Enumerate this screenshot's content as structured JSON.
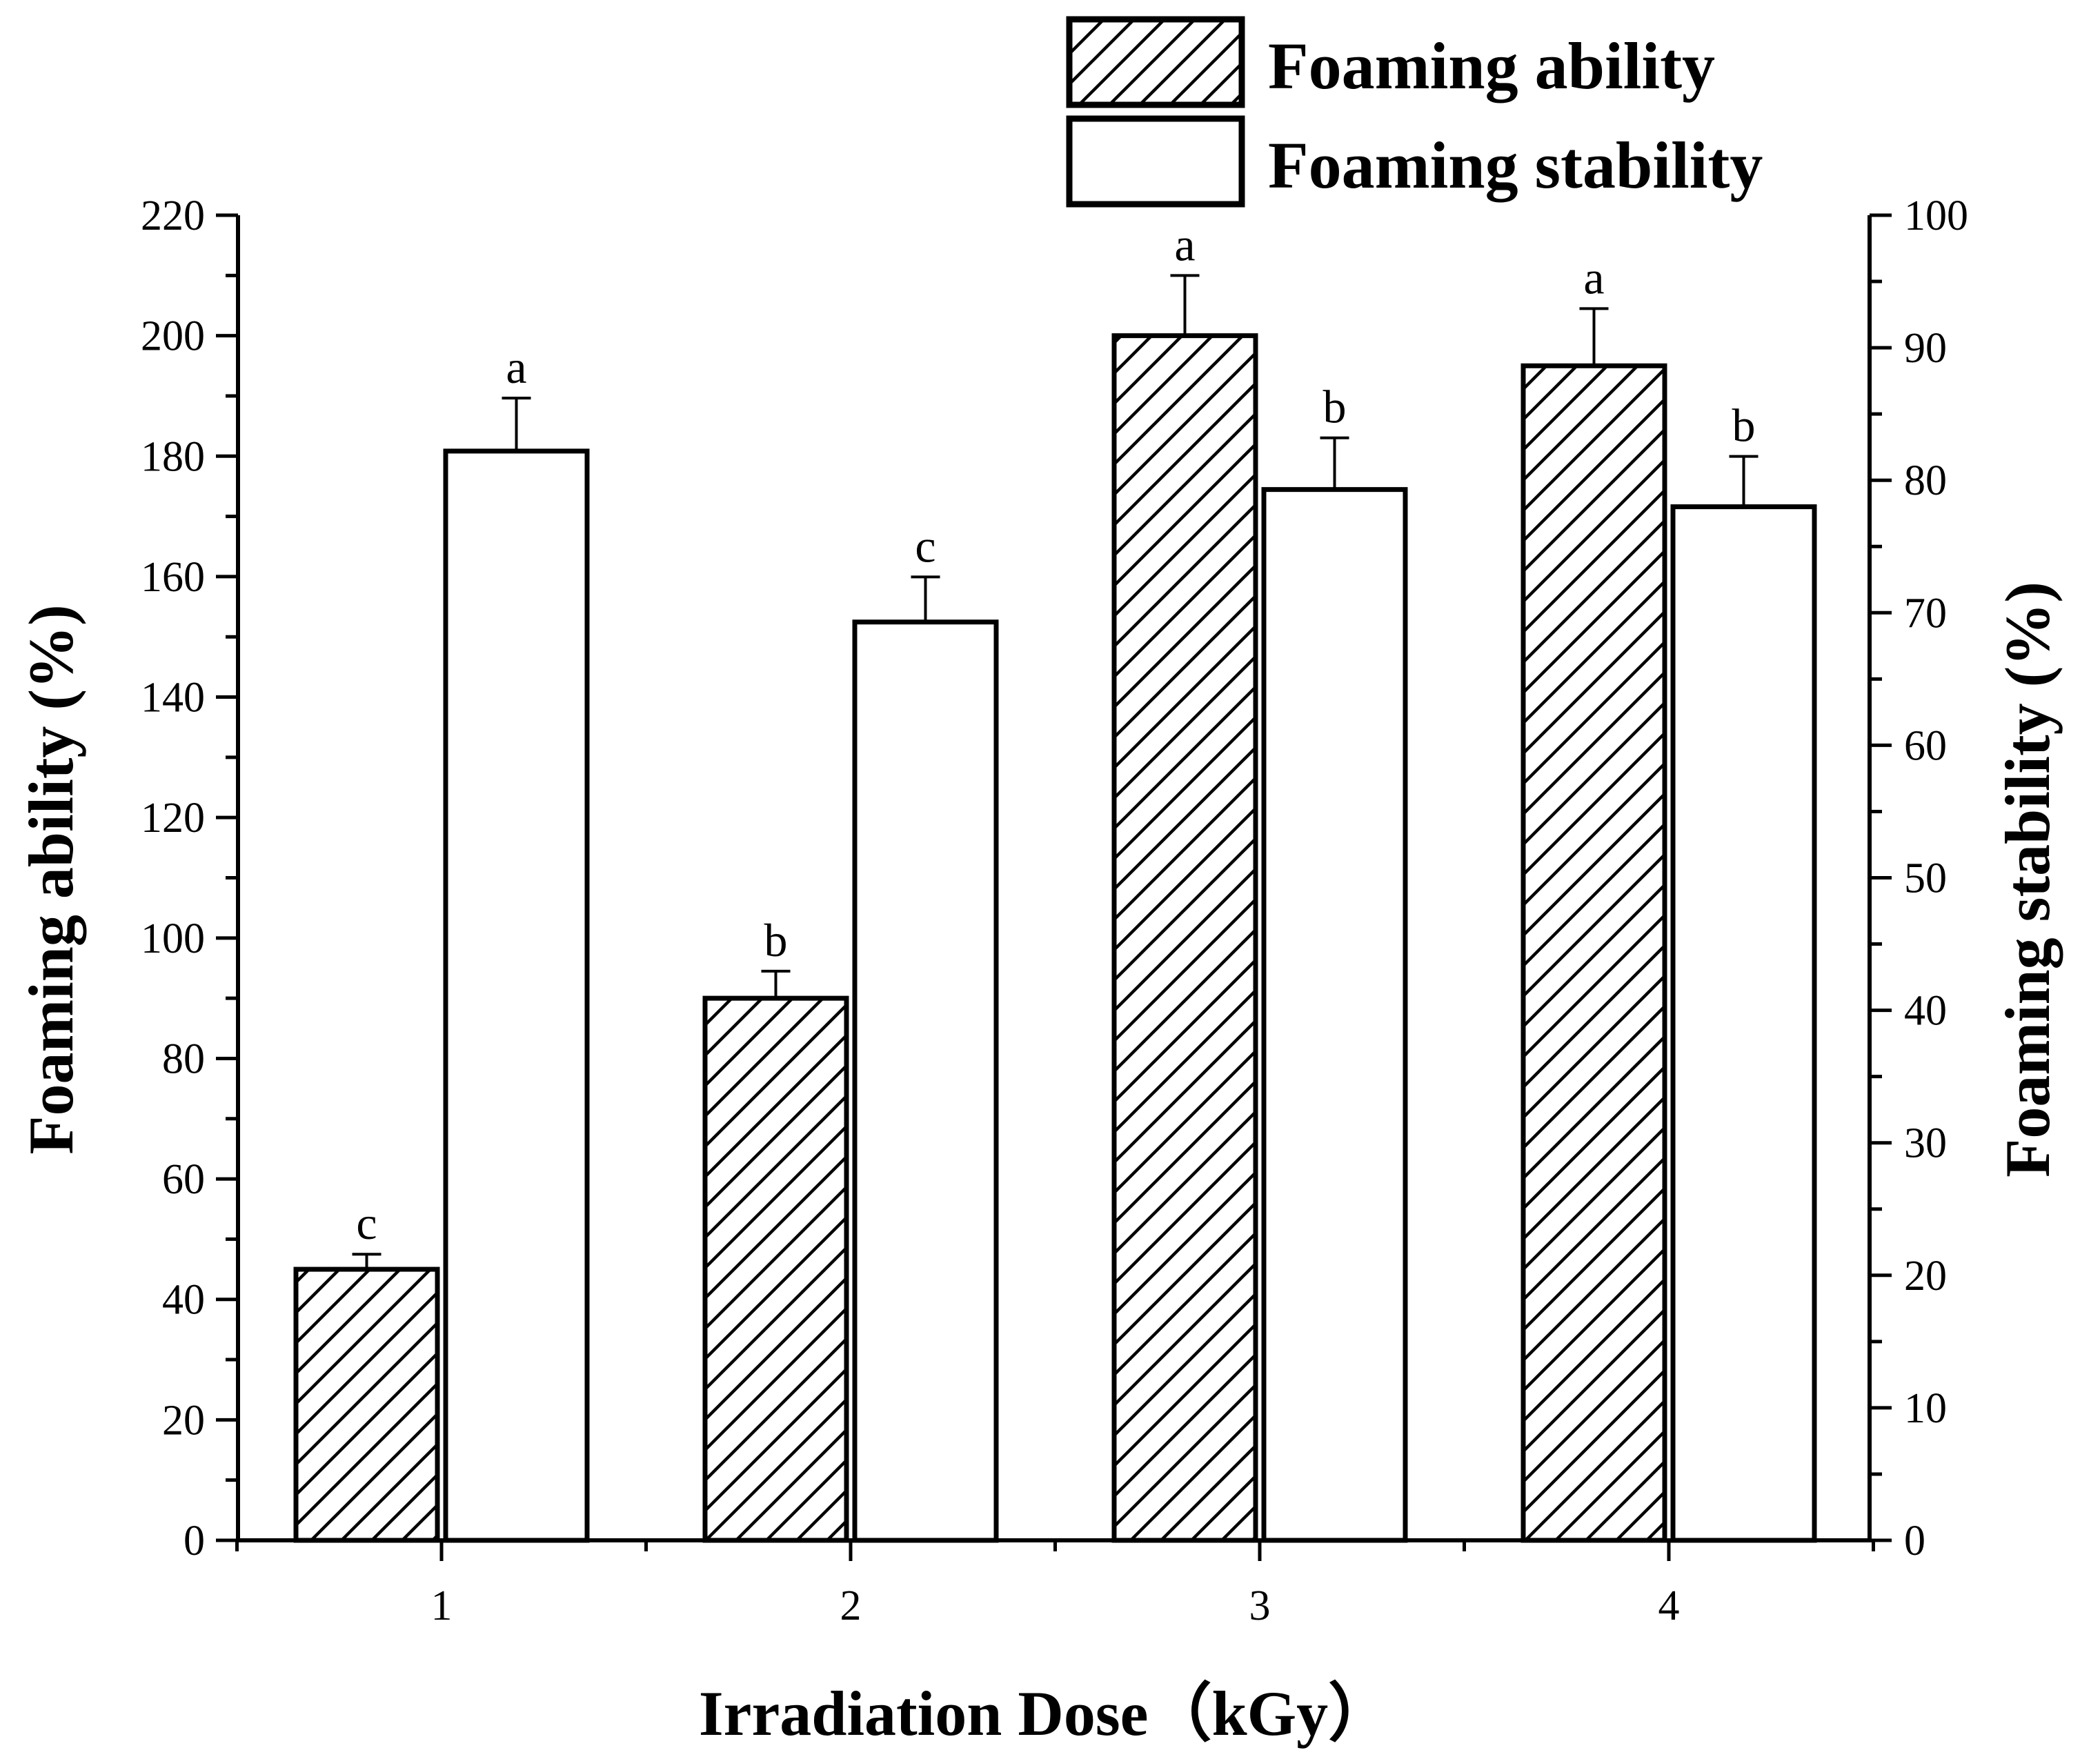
{
  "chart_data": {
    "type": "bar",
    "title": "",
    "xlabel": "Irradiation Dose（kGy）",
    "ylabel_left": "Foaming ability (%)",
    "ylabel_right": "Foaming stability (%)",
    "categories": [
      "1",
      "2",
      "3",
      "4"
    ],
    "ylim_left": [
      0,
      220
    ],
    "ylim_right": [
      0,
      100
    ],
    "yticks_left": [
      "0",
      "20",
      "40",
      "60",
      "80",
      "100",
      "120",
      "140",
      "160",
      "180",
      "200",
      "220"
    ],
    "yticks_right": [
      "0",
      "10",
      "20",
      "30",
      "40",
      "50",
      "60",
      "70",
      "80",
      "90",
      "100"
    ],
    "legend_position": "top-right",
    "grid": false,
    "series": [
      {
        "name": "Foaming ability",
        "axis": "left",
        "pattern": "hatched",
        "values": [
          45,
          90,
          200,
          195
        ],
        "errors": [
          2.5,
          4.5,
          10,
          9.5
        ],
        "labels": [
          "c",
          "b",
          "a",
          "a"
        ]
      },
      {
        "name": "Foaming stability",
        "axis": "right",
        "pattern": "white",
        "values": [
          82.2,
          69.3,
          79.3,
          78.0
        ],
        "errors": [
          4.0,
          3.4,
          3.9,
          3.8
        ],
        "labels": [
          "a",
          "c",
          "b",
          "b"
        ]
      }
    ]
  }
}
